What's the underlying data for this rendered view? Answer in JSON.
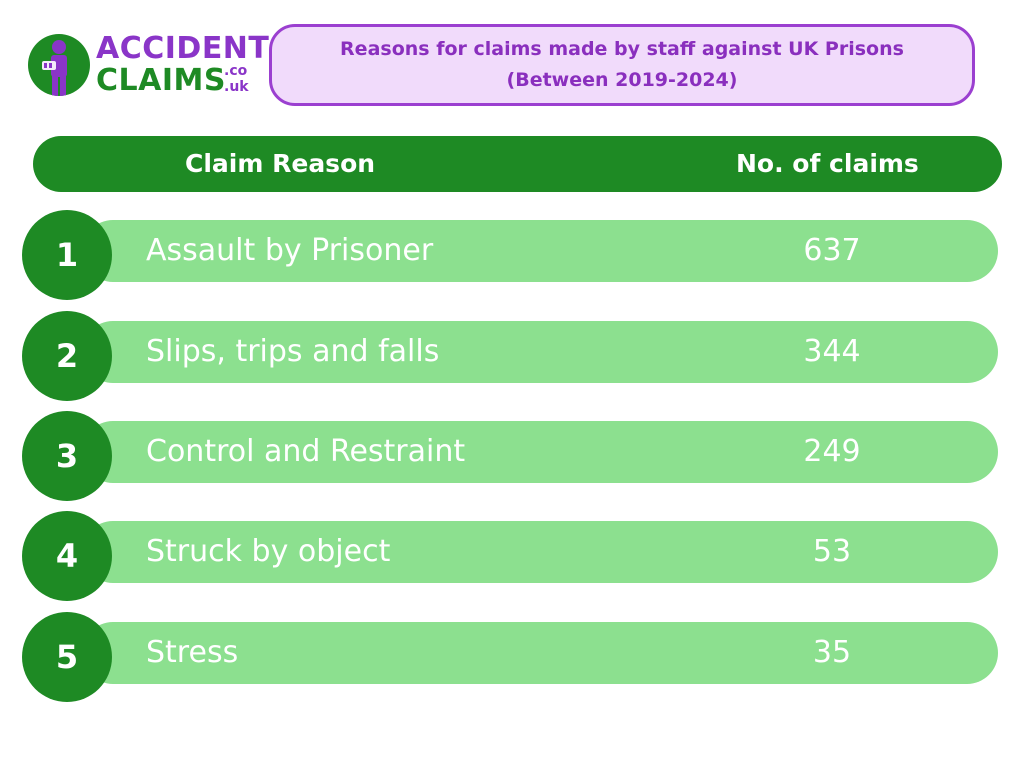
{
  "logo": {
    "word_1": "ACCIDENT",
    "word_2": "CLAIMS",
    "suffix_1": ".co",
    "suffix_2": ".uk",
    "icon": "person-with-cast-icon",
    "colors": {
      "green": "#1e8a24",
      "purple": "#8a35c8"
    }
  },
  "title": {
    "line_1": "Reasons for claims made by staff against UK Prisons",
    "line_2": "(Between 2019-2024)"
  },
  "header": {
    "reason_label": "Claim Reason",
    "count_label": "No. of claims"
  },
  "colors": {
    "header_bg": "#1e8a24",
    "row_bg": "#8ce08f",
    "rank_bg": "#1e8a24",
    "title_border": "#9b3fd0",
    "title_bg": "#f1dbfb",
    "title_text": "#8a2fbe"
  },
  "chart_data": {
    "type": "table",
    "title": "Reasons for claims made by staff against UK Prisons (Between 2019-2024)",
    "columns": [
      "Claim Reason",
      "No. of claims"
    ],
    "rows": [
      {
        "rank": "1",
        "reason": "Assault by Prisoner",
        "claims": "637"
      },
      {
        "rank": "2",
        "reason": "Slips, trips and falls",
        "claims": "344"
      },
      {
        "rank": "3",
        "reason": "Control and Restraint",
        "claims": "249"
      },
      {
        "rank": "4",
        "reason": "Struck by object",
        "claims": "53"
      },
      {
        "rank": "5",
        "reason": "Stress",
        "claims": "35"
      }
    ]
  }
}
